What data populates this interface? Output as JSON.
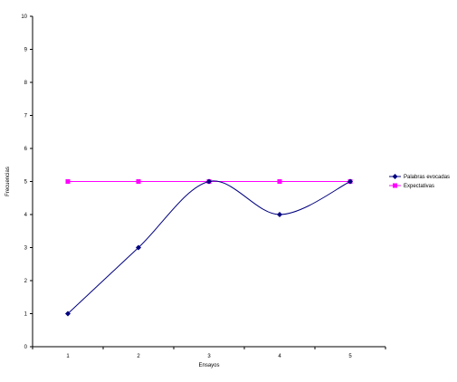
{
  "chart_data": {
    "type": "line",
    "title": "",
    "xlabel": "Ensayos",
    "ylabel": "Frecuencias",
    "x": [
      1,
      2,
      3,
      4,
      5
    ],
    "ylim": [
      0,
      10
    ],
    "yticks": [
      0,
      1,
      2,
      3,
      4,
      5,
      6,
      7,
      8,
      9,
      10
    ],
    "grid": false,
    "legend_position": "right",
    "series": [
      {
        "name": "Palabras evocadas",
        "values": [
          1,
          3,
          5,
          4,
          5
        ],
        "color": "#000080",
        "marker": "diamond",
        "smooth": true
      },
      {
        "name": "Expectativas",
        "values": [
          5,
          5,
          5,
          5,
          5
        ],
        "color": "#ff00ff",
        "marker": "square",
        "smooth": false
      }
    ]
  }
}
